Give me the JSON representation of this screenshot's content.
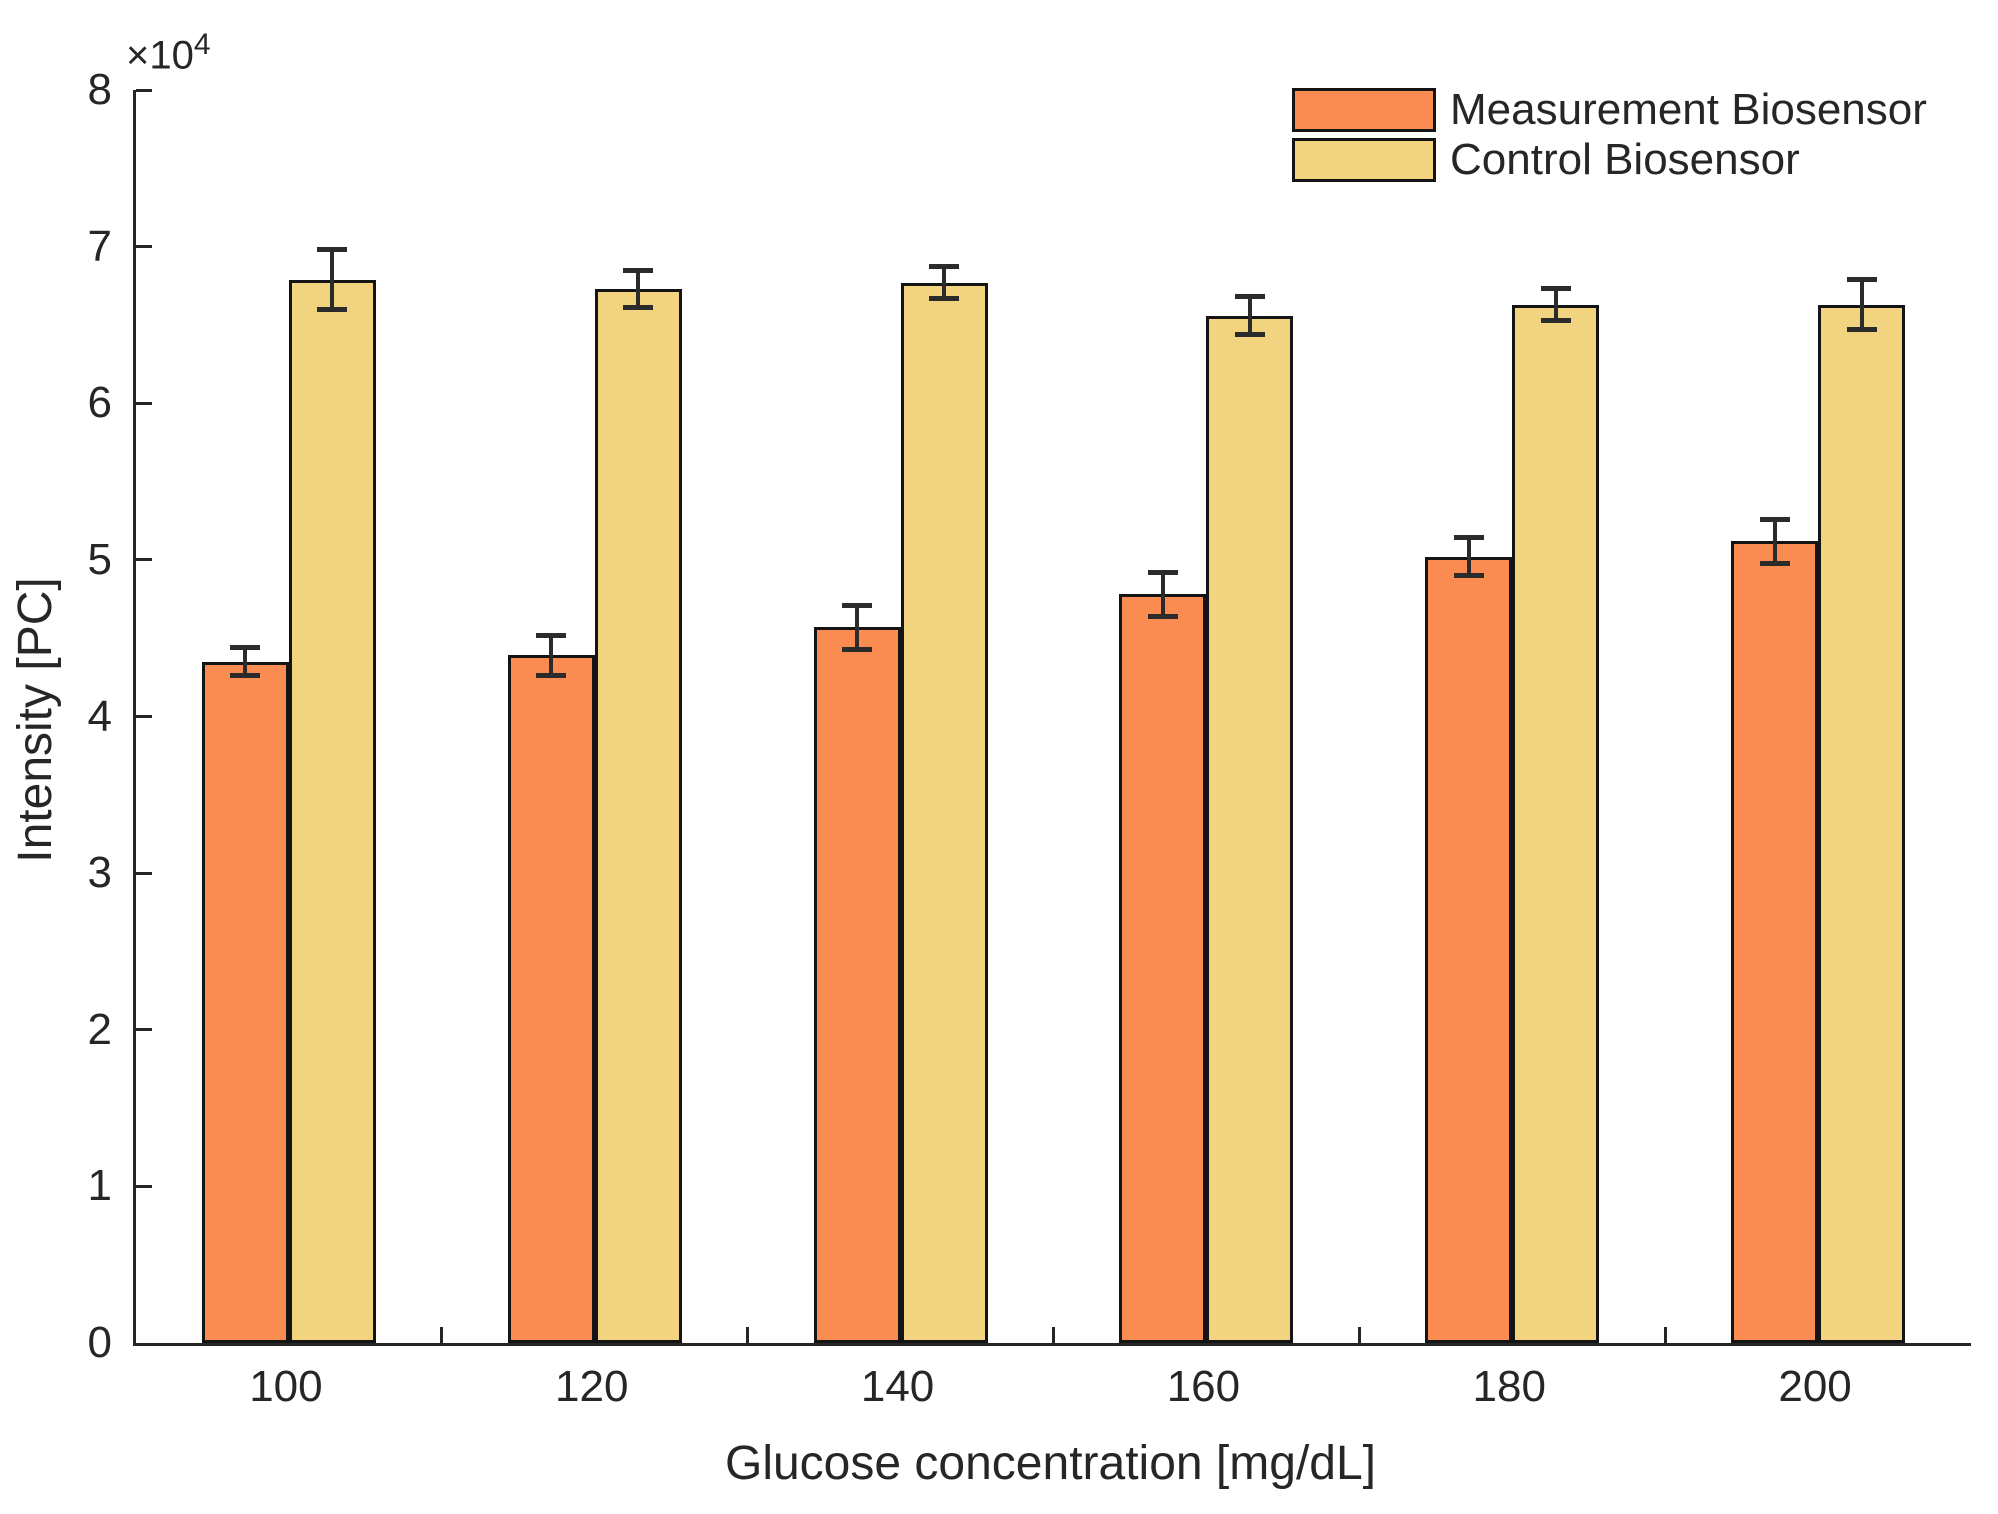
{
  "chart_data": {
    "type": "bar",
    "title": "",
    "xlabel": "Glucose concentration [mg/dL]",
    "ylabel": "Intensity [PC]",
    "y_exponent_prefix": "×10",
    "y_exponent": "4",
    "categories": [
      100,
      120,
      140,
      160,
      180,
      200
    ],
    "xtick_labels": [
      "100",
      "120",
      "140",
      "160",
      "180",
      "200"
    ],
    "ytick_labels": [
      "0",
      "1",
      "2",
      "3",
      "4",
      "5",
      "6",
      "7",
      "8"
    ],
    "ylim": [
      0,
      80000
    ],
    "grid": false,
    "legend_position": "top-right-inside",
    "axis_color": "#262626",
    "error_bar_color": "#2b2b2b",
    "series": [
      {
        "name": "Measurement Biosensor",
        "color": "#FA8C52",
        "values": [
          43500,
          43900,
          45700,
          47800,
          50200,
          51200
        ],
        "errors": [
          900,
          1300,
          1400,
          1400,
          1200,
          1400
        ]
      },
      {
        "name": "Control Biosensor",
        "color": "#F2D37F",
        "values": [
          67900,
          67300,
          67700,
          65600,
          66300,
          66300
        ],
        "errors": [
          1900,
          1200,
          1000,
          1200,
          1000,
          1600
        ]
      }
    ]
  }
}
